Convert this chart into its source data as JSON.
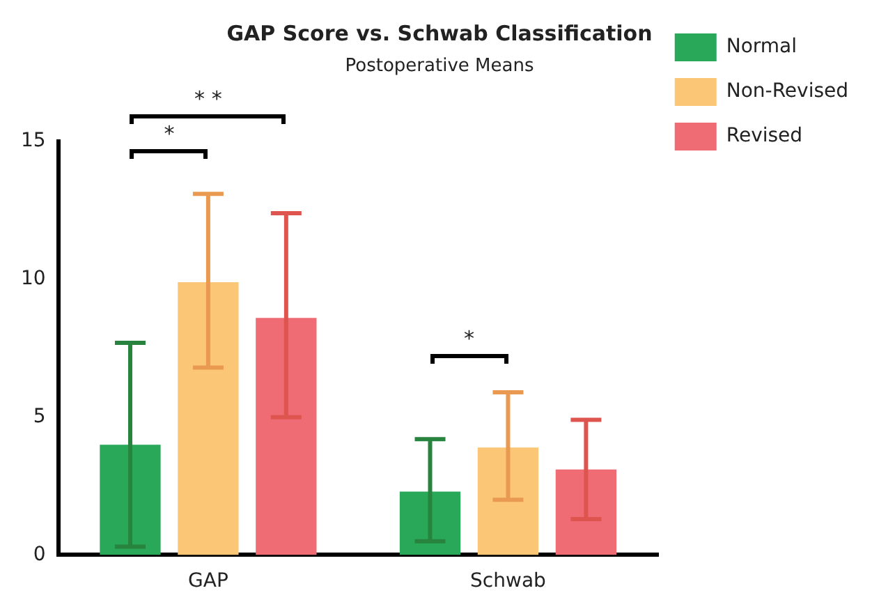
{
  "chart_data": {
    "type": "bar",
    "title": "GAP Score vs. Schwab Classification",
    "subtitle": "Postoperative Means",
    "categories": [
      "GAP",
      "Schwab"
    ],
    "series": [
      {
        "name": "Normal",
        "color": "#2aa85a",
        "values": [
          4.0,
          2.3
        ],
        "errors": [
          [
            0.3,
            7.7
          ],
          [
            0.5,
            4.2
          ]
        ]
      },
      {
        "name": "Non-Revised",
        "color": "#fbc676",
        "values": [
          9.9,
          3.9
        ],
        "errors": [
          [
            6.8,
            13.1
          ],
          [
            2.0,
            5.9
          ]
        ]
      },
      {
        "name": "Revised",
        "color": "#ef6c74",
        "values": [
          8.6,
          3.1
        ],
        "errors": [
          [
            5.0,
            12.4
          ],
          [
            1.3,
            4.9
          ]
        ]
      }
    ],
    "ylim": [
      0,
      15
    ],
    "yticks": [
      0,
      5,
      10,
      15
    ],
    "grid": false,
    "legend": "top right",
    "annotations": [
      "*",
      "* *",
      "*"
    ]
  }
}
